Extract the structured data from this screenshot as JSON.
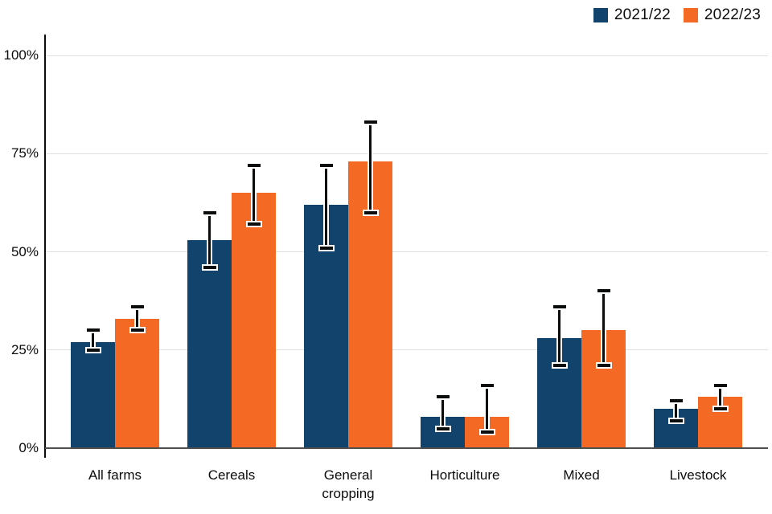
{
  "legend": {
    "items": [
      {
        "label": "2021/22",
        "color": "#12436D"
      },
      {
        "label": "2022/23",
        "color": "#F46A25"
      }
    ]
  },
  "axis": {
    "y_tick_labels": [
      "0%",
      "25%",
      "50%",
      "75%",
      "100%"
    ],
    "y_tick_values": [
      0,
      25,
      50,
      75,
      100
    ]
  },
  "colors": {
    "series_blue": "#12436D",
    "series_orange": "#F46A25",
    "gridline": "#e0e0e0",
    "baseline": "#4f4f4f",
    "axis_line": "#0b0c0c",
    "text": "#0b0c0c"
  },
  "chart_data": {
    "type": "bar",
    "title": "",
    "xlabel": "",
    "ylabel": "",
    "ylim": [
      0,
      100
    ],
    "grid": true,
    "legend_position": "top-right",
    "y_ticks": [
      "0%",
      "25%",
      "50%",
      "75%",
      "100%"
    ],
    "categories": [
      "All farms",
      "Cereals",
      "General cropping",
      "Horticulture",
      "Mixed",
      "Livestock"
    ],
    "series": [
      {
        "name": "2021/22",
        "color": "#12436D",
        "values": [
          27,
          53,
          62,
          8,
          28,
          10
        ],
        "error_low": [
          25,
          46,
          51,
          5,
          21,
          7
        ],
        "error_high": [
          30,
          60,
          72,
          13,
          36,
          12
        ]
      },
      {
        "name": "2022/23",
        "color": "#F46A25",
        "values": [
          33,
          65,
          73,
          8,
          30,
          13
        ],
        "error_low": [
          30,
          57,
          60,
          4,
          21,
          10
        ],
        "error_high": [
          36,
          72,
          83,
          16,
          40,
          16
        ]
      }
    ],
    "error_bars": true
  }
}
